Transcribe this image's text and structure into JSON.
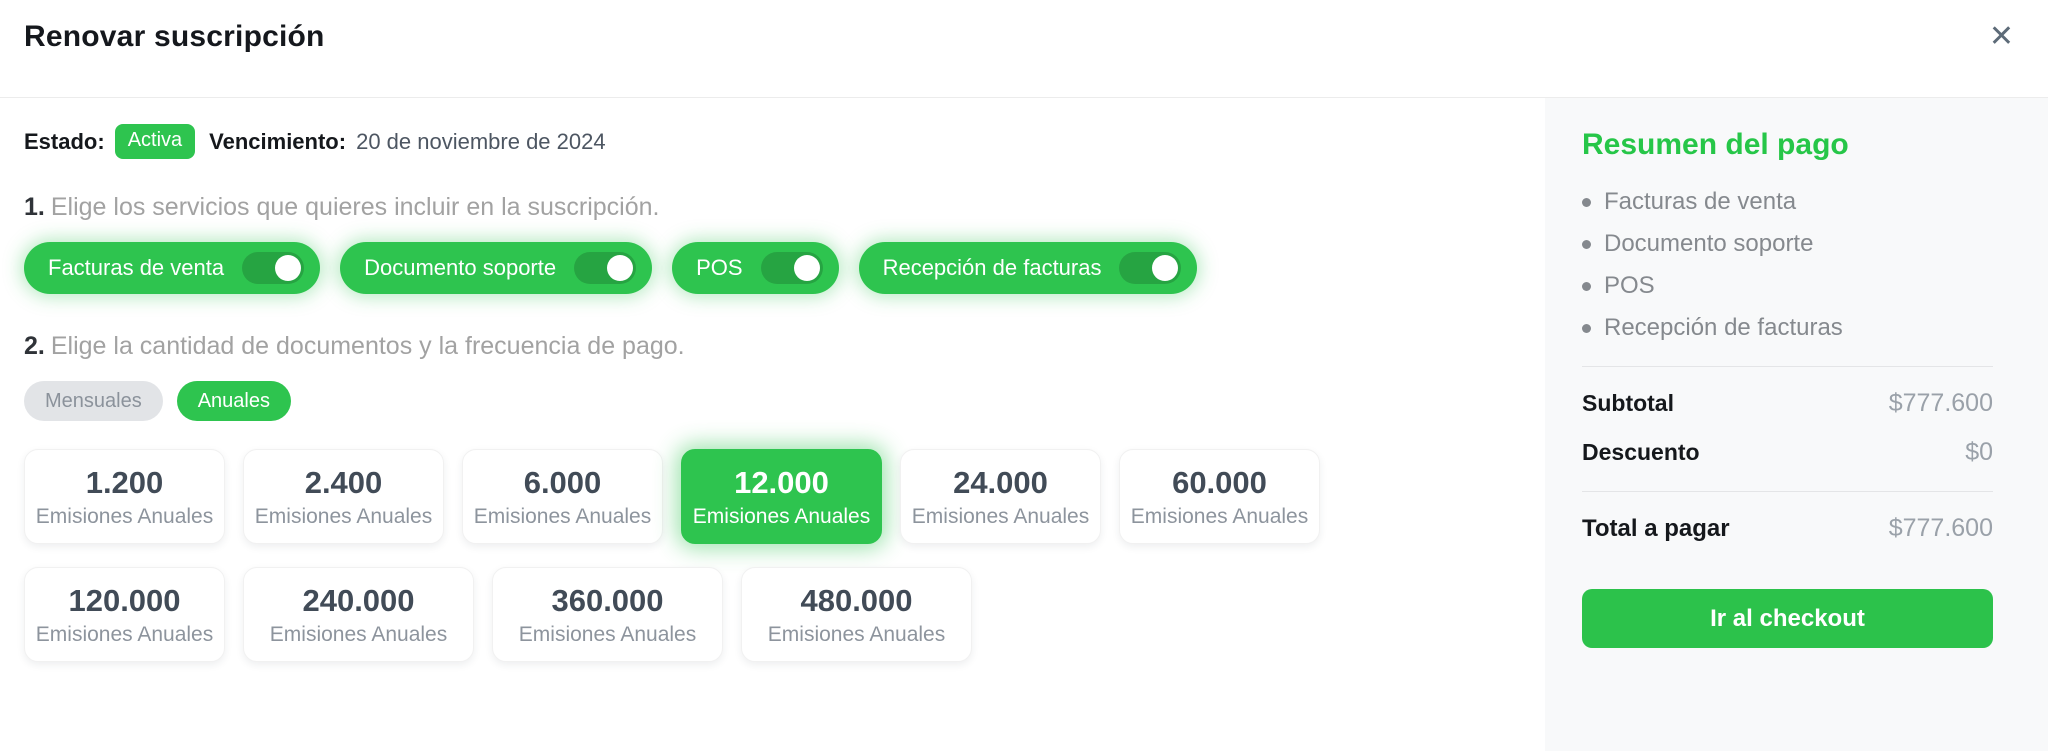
{
  "modal": {
    "title": "Renovar suscripción",
    "close_icon": "✕"
  },
  "status": {
    "label": "Estado:",
    "badge": "Activa",
    "due_label": "Vencimiento:",
    "due_date": "20 de noviembre de 2024"
  },
  "steps": {
    "step1": {
      "number": "1.",
      "text": "Elige los servicios que quieres incluir en la suscripción."
    },
    "step2": {
      "number": "2.",
      "text": "Elige la cantidad de documentos y la frecuencia de pago."
    }
  },
  "services": [
    {
      "label": "Facturas de venta",
      "enabled": true
    },
    {
      "label": "Documento soporte",
      "enabled": true
    },
    {
      "label": "POS",
      "enabled": true
    },
    {
      "label": "Recepción de facturas",
      "enabled": true
    }
  ],
  "frequency": {
    "options": [
      {
        "label": "Mensuales",
        "selected": false
      },
      {
        "label": "Anuales",
        "selected": true
      }
    ]
  },
  "plans": {
    "subtitle": "Emisiones Anuales",
    "options": [
      {
        "amount": "1.200",
        "selected": false
      },
      {
        "amount": "2.400",
        "selected": false
      },
      {
        "amount": "6.000",
        "selected": false
      },
      {
        "amount": "12.000",
        "selected": true
      },
      {
        "amount": "24.000",
        "selected": false
      },
      {
        "amount": "60.000",
        "selected": false
      },
      {
        "amount": "120.000",
        "selected": false
      },
      {
        "amount": "240.000",
        "selected": false
      },
      {
        "amount": "360.000",
        "selected": false
      },
      {
        "amount": "480.000",
        "selected": false
      }
    ]
  },
  "summary": {
    "title": "Resumen del pago",
    "items": [
      "Facturas de venta",
      "Documento soporte",
      "POS",
      "Recepción de facturas"
    ],
    "subtotal_label": "Subtotal",
    "subtotal_value": "$777.600",
    "discount_label": "Descuento",
    "discount_value": "$0",
    "total_label": "Total a pagar",
    "total_value": "$777.600",
    "checkout_label": "Ir al checkout"
  },
  "colors": {
    "primary_green": "#2ec44f",
    "heading_green": "#26c648",
    "panel_background": "#f8f9fa",
    "badge_green": "#2ec44f"
  }
}
